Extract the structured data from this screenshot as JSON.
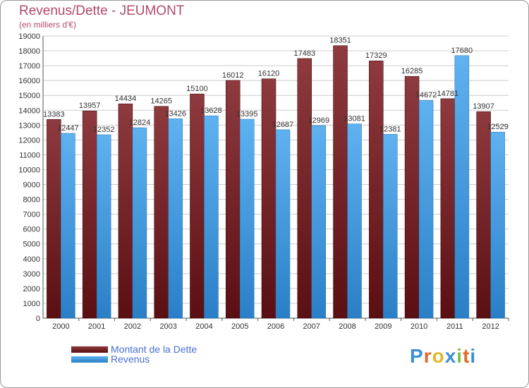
{
  "header": {
    "title": "Revenus/Dette - JEUMONT",
    "subtitle": "(en milliers d'€)"
  },
  "colors": {
    "title": "#b24a6a",
    "dette": "#7a1f24",
    "revenus": "#3f9be0",
    "legend_text": "#4a6fd1",
    "grid": "#cccccc"
  },
  "legend": {
    "dette_label": "Montant de la Dette",
    "revenus_label": "Revenus"
  },
  "logo": {
    "text": "Proxiti"
  },
  "chart_data": {
    "type": "bar",
    "categories": [
      "2000",
      "2001",
      "2002",
      "2003",
      "2004",
      "2005",
      "2006",
      "2007",
      "2008",
      "2009",
      "2010",
      "2011",
      "2012"
    ],
    "series": [
      {
        "name": "Montant de la Dette",
        "values": [
          13383,
          13957,
          14434,
          14265,
          15100,
          16012,
          16120,
          17483,
          18351,
          17329,
          16285,
          14781,
          13907
        ],
        "labels": [
          "13383",
          "13957",
          "14434",
          "14265",
          "15100",
          "16012",
          "16120",
          "17483",
          "18351",
          "17329",
          "16285",
          "14781",
          "13907"
        ]
      },
      {
        "name": "Revenus",
        "values": [
          12447,
          12352,
          12824,
          13426,
          13628,
          13395,
          12687,
          12969,
          13081,
          12381,
          14672,
          17680,
          12529
        ],
        "labels": [
          "12447",
          "12352",
          "12824",
          "13426",
          "13628",
          "13395",
          "12687",
          "12969",
          "13081",
          "12381",
          "14672",
          "17680",
          "12529"
        ]
      }
    ],
    "ylim": [
      0,
      19000
    ],
    "yticks": [
      0,
      1000,
      2000,
      3000,
      4000,
      5000,
      6000,
      7000,
      8000,
      9000,
      10000,
      11000,
      12000,
      13000,
      14000,
      15000,
      16000,
      17000,
      18000,
      19000
    ],
    "grid": true,
    "legend_position": "bottom-left"
  }
}
